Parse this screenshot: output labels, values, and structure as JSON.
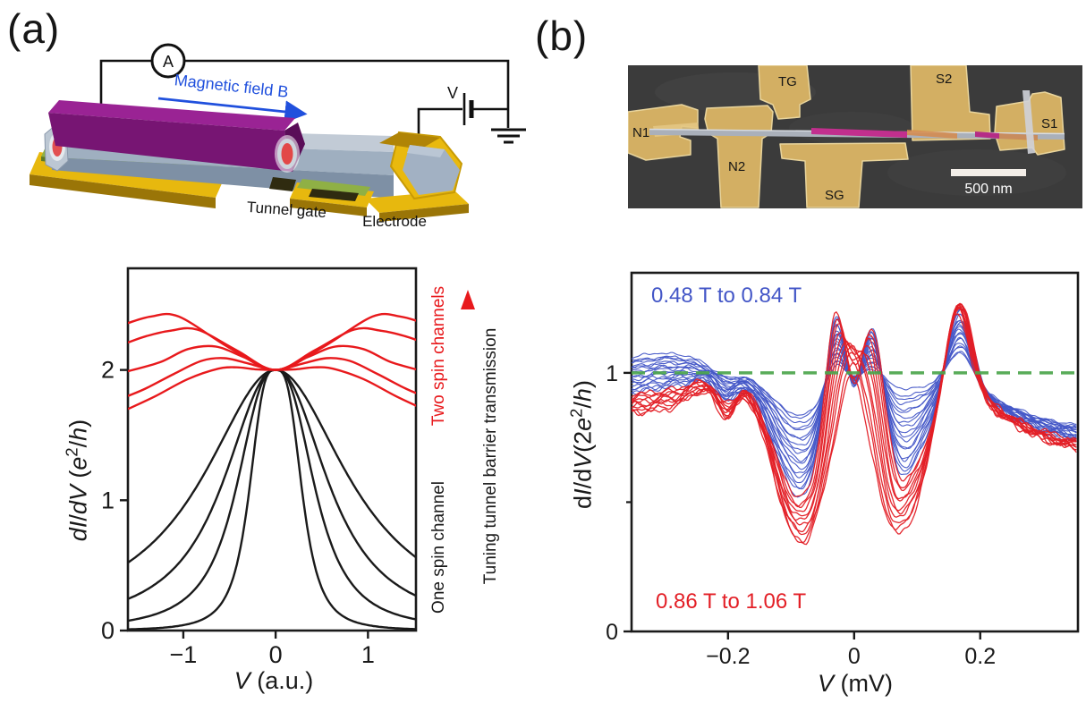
{
  "panels": {
    "a": {
      "letter": "(a)",
      "schematic": {
        "ammeter_label": "A",
        "voltage_label": "V",
        "field_label": "Magnetic field B",
        "tunnel_gate_label": "Tunnel gate",
        "electrode_label": "Electrode"
      },
      "plot": {
        "ylabel_html": "<i>dI</i>/<i>dV</i> (<i>e</i><sup>2</sup>/<i>h</i>)",
        "xlabel_html": "<i>V</i> (a.u.)",
        "annotation_two_spin": "Two spin channels",
        "annotation_one_spin": "One spin channel",
        "annotation_arrow": "Tuning tunnel barrier transmission"
      }
    },
    "b": {
      "letter": "(b)",
      "sem": {
        "labels": [
          "N1",
          "N2",
          "TG",
          "SG",
          "S2",
          "S1"
        ],
        "scale_bar": "500 nm"
      },
      "plot": {
        "ylabel_html": "d<i>I</i>/d<i>V</i>(2<i>e</i><sup>2</sup>/<i>h</i>)",
        "xlabel_html": "<i>V</i> (mV)",
        "blue_label": "0.48 T to 0.84 T",
        "red_label": "0.86 T to 1.06 T"
      }
    }
  },
  "colors": {
    "black_curve": "#1a1a1a",
    "red_curve": "#e8191c",
    "blue_family": "#4356c7",
    "red_family": "#e31f26",
    "green_reference": "#4ca64c",
    "field_arrow_blue": "#2050dd",
    "sem_gold": "#d3af63",
    "sem_background": "#3b3b3b",
    "nanowire_magenta": "#c22f8e",
    "nanowire_orange": "#d68a4a"
  },
  "chart_data": [
    {
      "type": "line",
      "panel": "a",
      "title": "",
      "xlabel": "V (a.u.)",
      "ylabel": "dI/dV (e2/h)",
      "xlim": [
        -1.6,
        1.52
      ],
      "ylim": [
        0,
        2.78
      ],
      "xticks": [
        -1,
        0,
        1
      ],
      "xtick_labels": [
        "−1",
        "0",
        "1"
      ],
      "yticks": [
        0,
        1,
        2
      ],
      "ytick_labels": [
        "0",
        "1",
        "2"
      ],
      "grid": false,
      "one_spin_family": {
        "name": "One spin channel",
        "color": "#1a1a1a",
        "peak_value": 2,
        "peak_x": 0,
        "shape": "2/(1+(|V|/hwhm)^power)",
        "curves": [
          {
            "hwhm": 0.3,
            "power": 3.2
          },
          {
            "hwhm": 0.46,
            "power": 2.6
          },
          {
            "hwhm": 0.65,
            "power": 2.2
          },
          {
            "hwhm": 0.95,
            "power": 2.0
          }
        ]
      },
      "two_spin_family": {
        "name": "Two spin channels",
        "color": "#e8191c",
        "crossing_point": [
          0,
          2
        ],
        "symmetric": true,
        "control_points_positive_side": [
          [
            [
              0,
              2
            ],
            [
              0.22,
              2.005
            ],
            [
              0.42,
              2.02
            ],
            [
              0.62,
              2.01
            ],
            [
              0.95,
              1.93
            ],
            [
              1.3,
              1.8
            ],
            [
              1.6,
              1.7
            ]
          ],
          [
            [
              0,
              2
            ],
            [
              0.3,
              2.05
            ],
            [
              0.55,
              2.09
            ],
            [
              0.8,
              2.07
            ],
            [
              1.1,
              1.97
            ],
            [
              1.4,
              1.86
            ],
            [
              1.6,
              1.8
            ]
          ],
          [
            [
              0,
              2
            ],
            [
              0.35,
              2.1
            ],
            [
              0.65,
              2.18
            ],
            [
              0.95,
              2.16
            ],
            [
              1.25,
              2.06
            ],
            [
              1.6,
              1.99
            ]
          ],
          [
            [
              0,
              2
            ],
            [
              0.42,
              2.15
            ],
            [
              0.85,
              2.31
            ],
            [
              1.15,
              2.3
            ],
            [
              1.4,
              2.26
            ],
            [
              1.6,
              2.21
            ]
          ],
          [
            [
              0,
              2
            ],
            [
              0.5,
              2.17
            ],
            [
              1.05,
              2.41
            ],
            [
              1.35,
              2.41
            ],
            [
              1.6,
              2.36
            ]
          ]
        ]
      }
    },
    {
      "type": "line",
      "panel": "b",
      "title": "",
      "xlabel": "V (mV)",
      "ylabel": "dI/dV (2e2/h)",
      "xlim": [
        -0.353,
        0.355
      ],
      "ylim": [
        0,
        1.387
      ],
      "xticks": [
        -0.2,
        0,
        0.2
      ],
      "xtick_labels": [
        "−0.2",
        "0",
        "0.2"
      ],
      "yticks": [
        0,
        1
      ],
      "ytick_labels": [
        "0",
        "1"
      ],
      "yticks_minor": [
        0.5
      ],
      "grid": false,
      "reference_line": {
        "y": 1,
        "style": "dashed",
        "color": "#4ca64c"
      },
      "families": [
        {
          "label": "0.48 T to 0.84 T",
          "color": "#4356c7",
          "count": 19,
          "B_start_T": 0.48,
          "B_end_T": 0.84,
          "B_step_T": 0.02
        },
        {
          "label": "0.86 T to 1.06 T",
          "color": "#e31f26",
          "count": 11,
          "B_start_T": 0.86,
          "B_end_T": 1.06,
          "B_step_T": 0.02
        }
      ],
      "features": {
        "plateau": {
          "x0": -0.245,
          "w": 0.018,
          "a0": 0.05,
          "a1": -0.22
        },
        "bumpL": {
          "x": -0.285,
          "sig": 0.045,
          "a": 0.025
        },
        "dipSmall": {
          "x": -0.203,
          "sig": 0.016,
          "a0": 0.02,
          "a1": 0.13
        },
        "dipL": {
          "x": -0.085,
          "sig": 0.042,
          "a0": 0.16,
          "a1": 0.5
        },
        "dipR": {
          "x": 0.07,
          "sig": 0.043,
          "a0": 0.06,
          "a1": 0.55
        },
        "peakL": {
          "x": -0.03,
          "sig": 0.0165,
          "a0": 0.1,
          "a1": 0.55,
          "red_fade": 0.85
        },
        "peakR": {
          "x": 0.031,
          "sig": 0.018,
          "a0": 0.06,
          "a1": 0.62,
          "red_fade": 0.85
        },
        "zero": {
          "sig": 0.012,
          "a0": -0.01,
          "a1": -0.08,
          "red_peak": 0.18
        },
        "peak3": {
          "x": 0.168,
          "sig": 0.02,
          "a0": 0.13,
          "a1": 0.35,
          "red_fade": 0.25,
          "x_shift": -0.006
        },
        "tail": {
          "x0": 0.23,
          "w": 0.05,
          "a0": 0.22,
          "a1": 0.1
        },
        "noise": {
          "a0": 0.007,
          "a1": 0.012
        }
      }
    }
  ]
}
